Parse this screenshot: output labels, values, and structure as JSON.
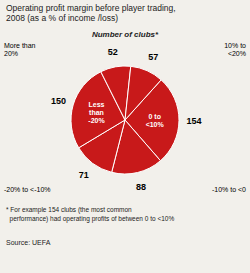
{
  "chart_data": {
    "type": "pie",
    "title": "Operating profit margin before player trading,\n2008 (as a % of income /loss)",
    "header": "Number of clubs*",
    "categories": [
      "0 to\n<10%",
      "-10% to <0",
      "-20% to <-10%",
      "Less\nthan\n-20%",
      "More than\n20%",
      "10% to\n<20%"
    ],
    "values": [
      154,
      88,
      71,
      150,
      52,
      57
    ],
    "color": "#c8191a",
    "data_labels": true,
    "note": "* For example 154 clubs (the most common\n  performance) had operating profits of between 0 to <10%",
    "source": "Source: UEFA"
  }
}
